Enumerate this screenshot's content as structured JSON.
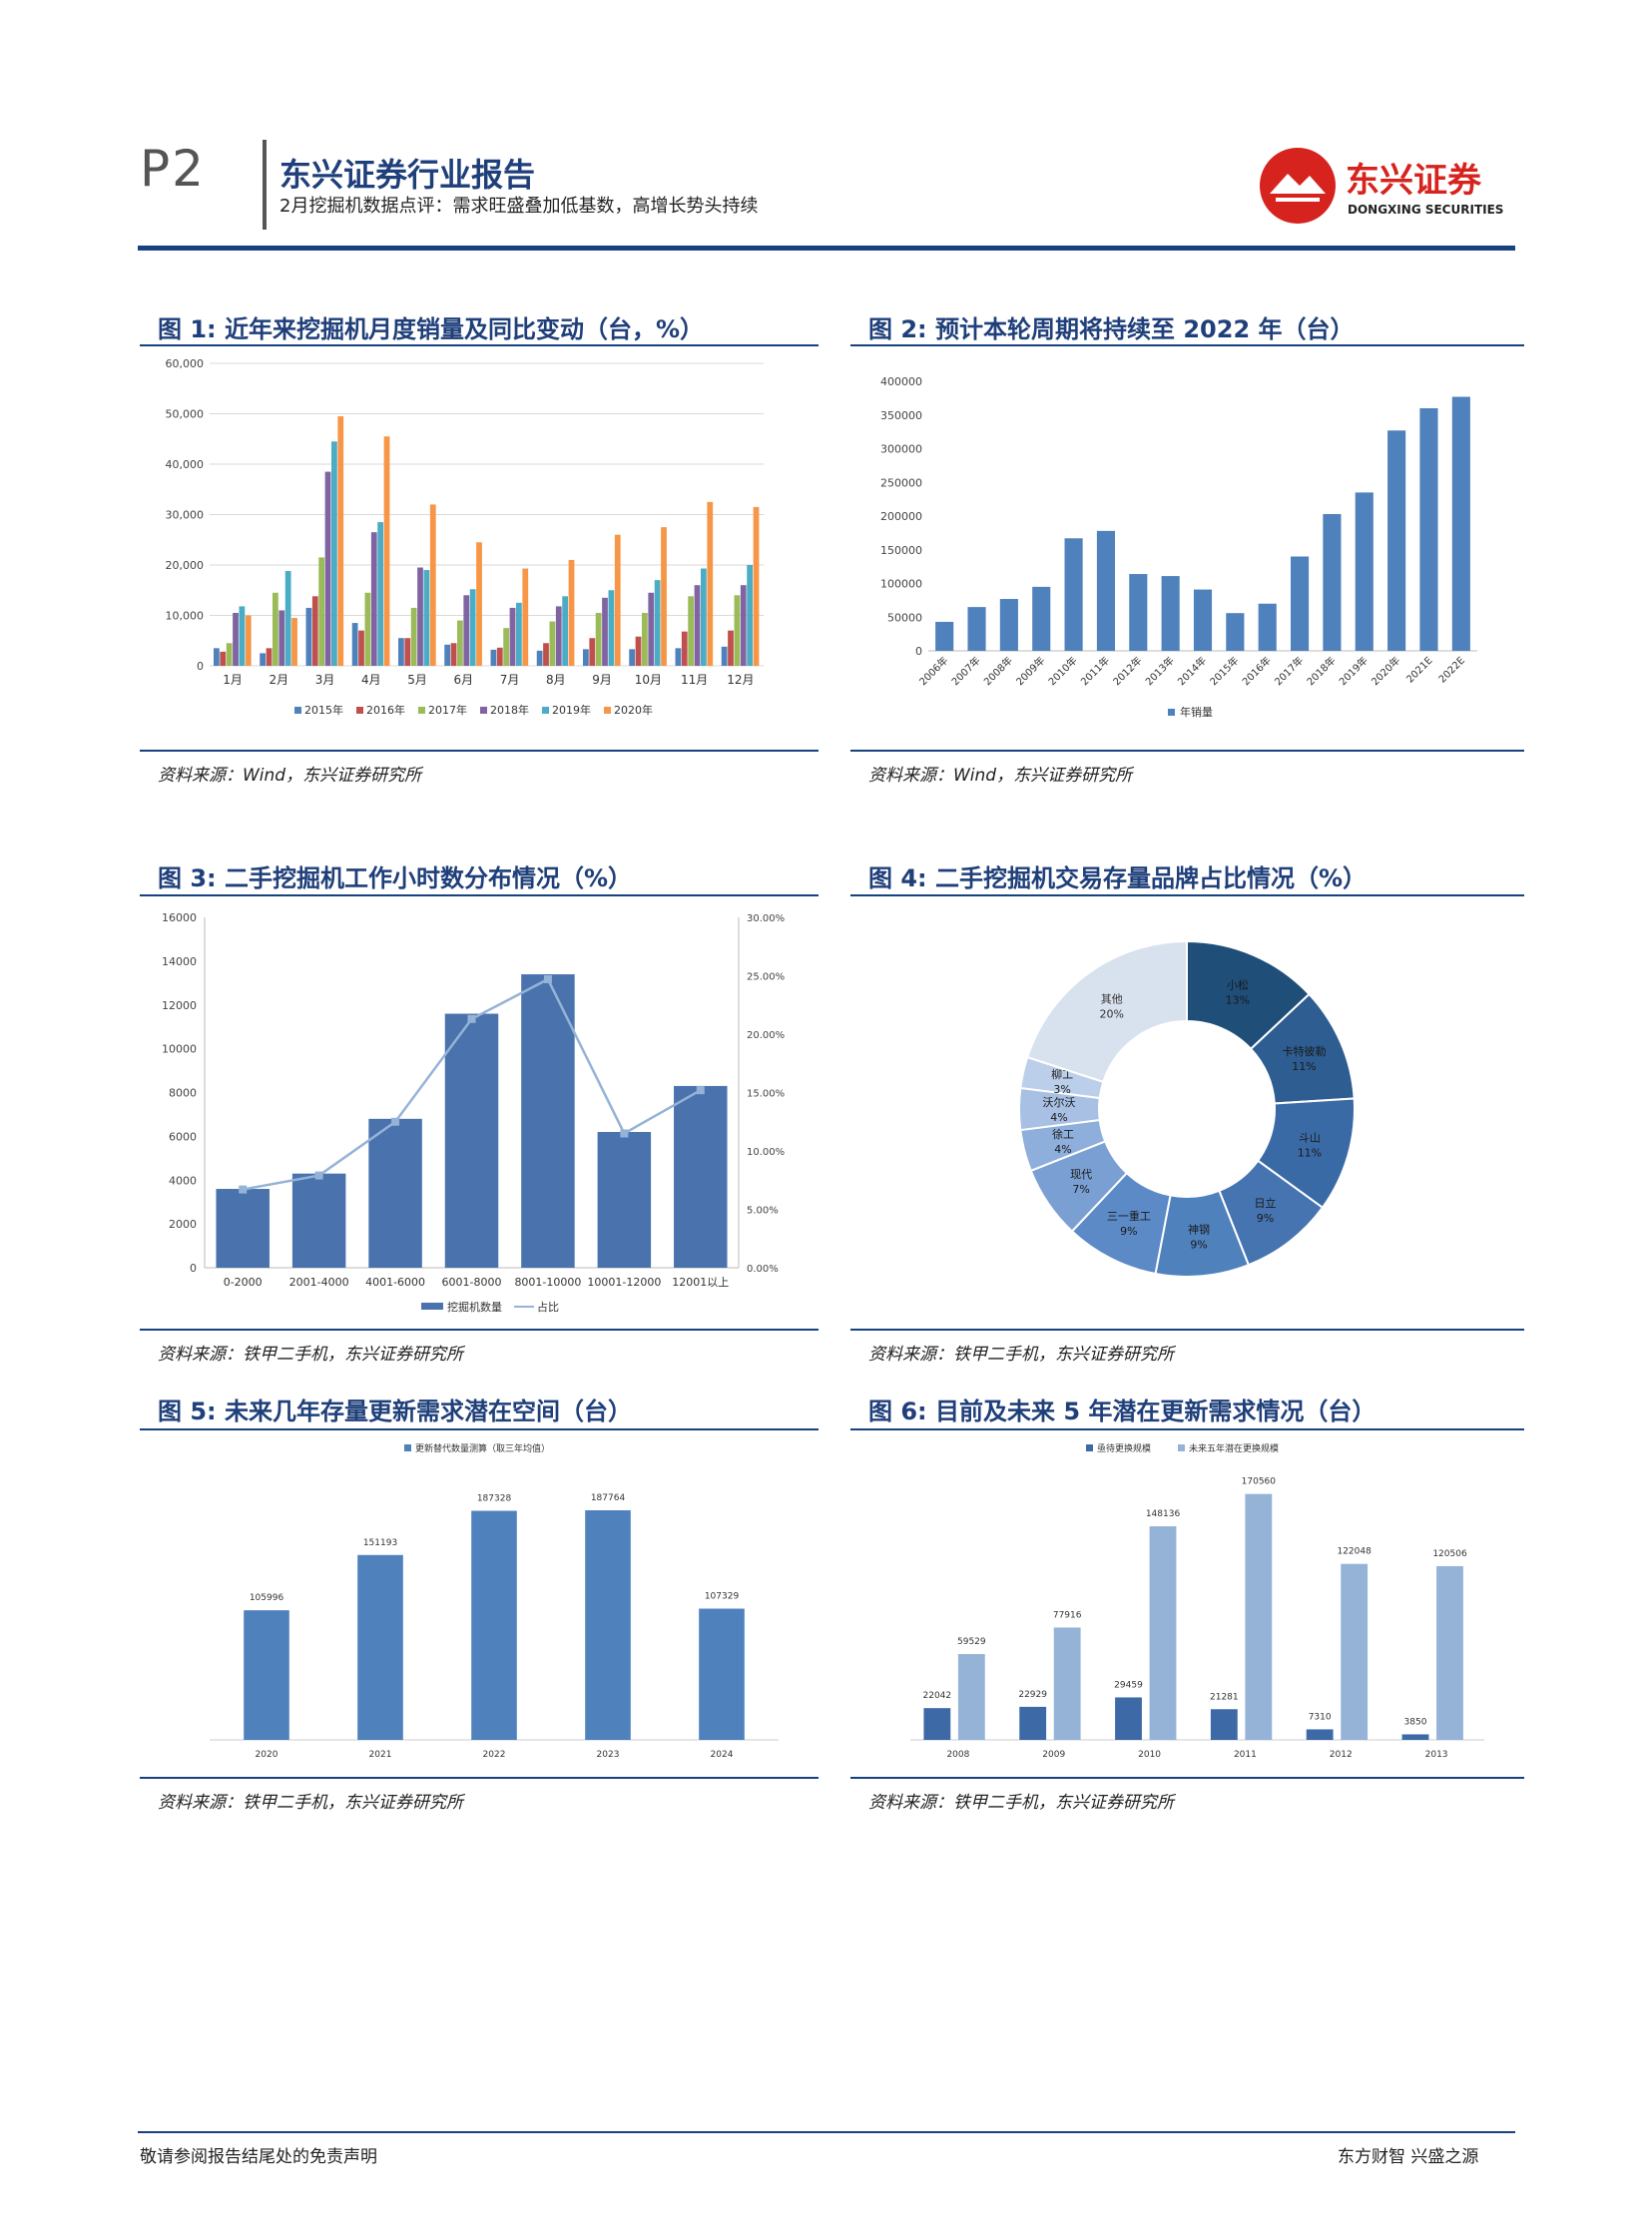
{
  "header": {
    "page": "P2",
    "title": "东兴证券行业报告",
    "subtitle": "2月挖掘机数据点评：需求旺盛叠加低基数，高增长势头持续",
    "logo_cn": "东兴证券",
    "logo_en": "DONGXING SECURITIES"
  },
  "footer": {
    "left": "敬请参阅报告结尾处的免责声明",
    "right": "东方财智 兴盛之源"
  },
  "sources": {
    "s1": "资料来源：Wind，东兴证券研究所",
    "s2": "资料来源：Wind，东兴证券研究所",
    "s3": "资料来源：铁甲二手机，东兴证券研究所",
    "s4": "资料来源：铁甲二手机，东兴证券研究所",
    "s5": "资料来源：铁甲二手机，东兴证券研究所",
    "s6": "资料来源：铁甲二手机，东兴证券研究所"
  },
  "figures": {
    "f1": "图 1: 近年来挖掘机月度销量及同比变动（台，%）",
    "f2": "图 2: 预计本轮周期将持续至 2022 年（台）",
    "f3": "图 3: 二手挖掘机工作小时数分布情况（%）",
    "f4": "图 4: 二手挖掘机交易存量品牌占比情况（%）",
    "f5": "图 5: 未来几年存量更新需求潜在空间（台）",
    "f6": "图 6: 目前及未来 5 年潜在更新需求情况（台）"
  },
  "colors": {
    "primary": "#17427f",
    "title": "#1f3f7a",
    "bar": "#4f81bd",
    "bar_light": "#95b3d7"
  },
  "chart_data": [
    {
      "id": "c1",
      "type": "bar",
      "categories": [
        "1月",
        "2月",
        "3月",
        "4月",
        "5月",
        "6月",
        "7月",
        "8月",
        "9月",
        "10月",
        "11月",
        "12月"
      ],
      "ylim": [
        0,
        60000
      ],
      "yticks": [
        "0",
        "10,000",
        "20,000",
        "30,000",
        "40,000",
        "50,000",
        "60,000"
      ],
      "series": [
        {
          "name": "2015年",
          "color": "#4f81bd",
          "values": [
            3500,
            2500,
            11500,
            8500,
            5500,
            4200,
            3200,
            3000,
            3300,
            3300,
            3500,
            3800
          ]
        },
        {
          "name": "2016年",
          "color": "#c0504d",
          "values": [
            2800,
            3500,
            13800,
            7000,
            5500,
            4500,
            3600,
            4500,
            5500,
            5800,
            6800,
            7000
          ]
        },
        {
          "name": "2017年",
          "color": "#9bbb59",
          "values": [
            4500,
            14500,
            21500,
            14500,
            11500,
            9000,
            7500,
            8800,
            10500,
            10500,
            13800,
            14000
          ]
        },
        {
          "name": "2018年",
          "color": "#8064a2",
          "values": [
            10500,
            11000,
            38500,
            26500,
            19500,
            14000,
            11500,
            11800,
            13500,
            14500,
            16000,
            16000
          ]
        },
        {
          "name": "2019年",
          "color": "#4bacc6",
          "values": [
            11800,
            18800,
            44500,
            28500,
            19000,
            15200,
            12500,
            13800,
            15000,
            17000,
            19300,
            20000
          ]
        },
        {
          "name": "2020年",
          "color": "#f79646",
          "values": [
            10000,
            9500,
            49500,
            45500,
            32000,
            24500,
            19300,
            21000,
            26000,
            27500,
            32500,
            31500
          ]
        }
      ]
    },
    {
      "id": "c2",
      "type": "bar",
      "categories": [
        "2006年",
        "2007年",
        "2008年",
        "2009年",
        "2010年",
        "2011年",
        "2012年",
        "2013年",
        "2014年",
        "2015年",
        "2016年",
        "2017年",
        "2018年",
        "2019年",
        "2020年",
        "2021E",
        "2022E"
      ],
      "values": [
        43000,
        65000,
        77000,
        95000,
        167000,
        178000,
        114000,
        111000,
        91000,
        56000,
        70000,
        140000,
        203000,
        235000,
        327000,
        360000,
        377000
      ],
      "ylim": [
        0,
        400000
      ],
      "yticks": [
        "0",
        "50000",
        "100000",
        "150000",
        "200000",
        "250000",
        "300000",
        "350000",
        "400000"
      ],
      "legend": "年销量"
    },
    {
      "id": "c3",
      "type": "bar",
      "categories": [
        "0-2000",
        "2001-4000",
        "4001-6000",
        "6001-8000",
        "8001-10000",
        "10001-12000",
        "12001以上"
      ],
      "values": [
        3600,
        4300,
        6800,
        11600,
        13400,
        6200,
        8300
      ],
      "line": [
        6.7,
        7.9,
        12.5,
        21.3,
        24.7,
        11.5,
        15.2
      ],
      "ylim": [
        0,
        16000
      ],
      "yticks": [
        "0",
        "2000",
        "4000",
        "6000",
        "8000",
        "10000",
        "12000",
        "14000",
        "16000"
      ],
      "y2ticks": [
        "0.00%",
        "5.00%",
        "10.00%",
        "15.00%",
        "20.00%",
        "25.00%",
        "30.00%"
      ],
      "legend": [
        "挖掘机数量",
        "占比"
      ]
    },
    {
      "id": "c4",
      "type": "pie",
      "labels": [
        "小松",
        "卡特彼勒",
        "斗山",
        "日立",
        "神钢",
        "三一重工",
        "现代",
        "徐工",
        "沃尔沃",
        "柳工",
        "其他"
      ],
      "values": [
        13,
        11,
        11,
        9,
        9,
        9,
        7,
        4,
        4,
        3,
        20
      ],
      "pct": [
        "13%",
        "11%",
        "11%",
        "9%",
        "9%",
        "9%",
        "7%",
        "4%",
        "4%",
        "3%",
        "20%"
      ],
      "colors": [
        "#1f4e79",
        "#2e5d91",
        "#3a6aa5",
        "#4674b0",
        "#4f81bd",
        "#5b8ac7",
        "#7a9fd2",
        "#8eaedb",
        "#a7c0e3",
        "#bccfea",
        "#d8e1ee"
      ]
    },
    {
      "id": "c5",
      "type": "bar",
      "legend": "更新替代数量测算（取三年均值）",
      "categories": [
        "2020",
        "2021",
        "2022",
        "2023",
        "2024"
      ],
      "values": [
        105996,
        151193,
        187328,
        187764,
        107329
      ],
      "labels": [
        "105996",
        "151193",
        "187328",
        "187764",
        "107329"
      ]
    },
    {
      "id": "c6",
      "type": "bar",
      "legend": [
        "亟待更换规模",
        "未来五年潜在更换规模"
      ],
      "categories": [
        "2008",
        "2009",
        "2010",
        "2011",
        "2012",
        "2013"
      ],
      "series": [
        {
          "name": "亟待更换规模",
          "values": [
            22042,
            22929,
            29459,
            21281,
            7310,
            3850
          ]
        },
        {
          "name": "未来五年潜在更换规模",
          "values": [
            59529,
            77916,
            148136,
            170560,
            122048,
            120506
          ]
        }
      ]
    }
  ]
}
